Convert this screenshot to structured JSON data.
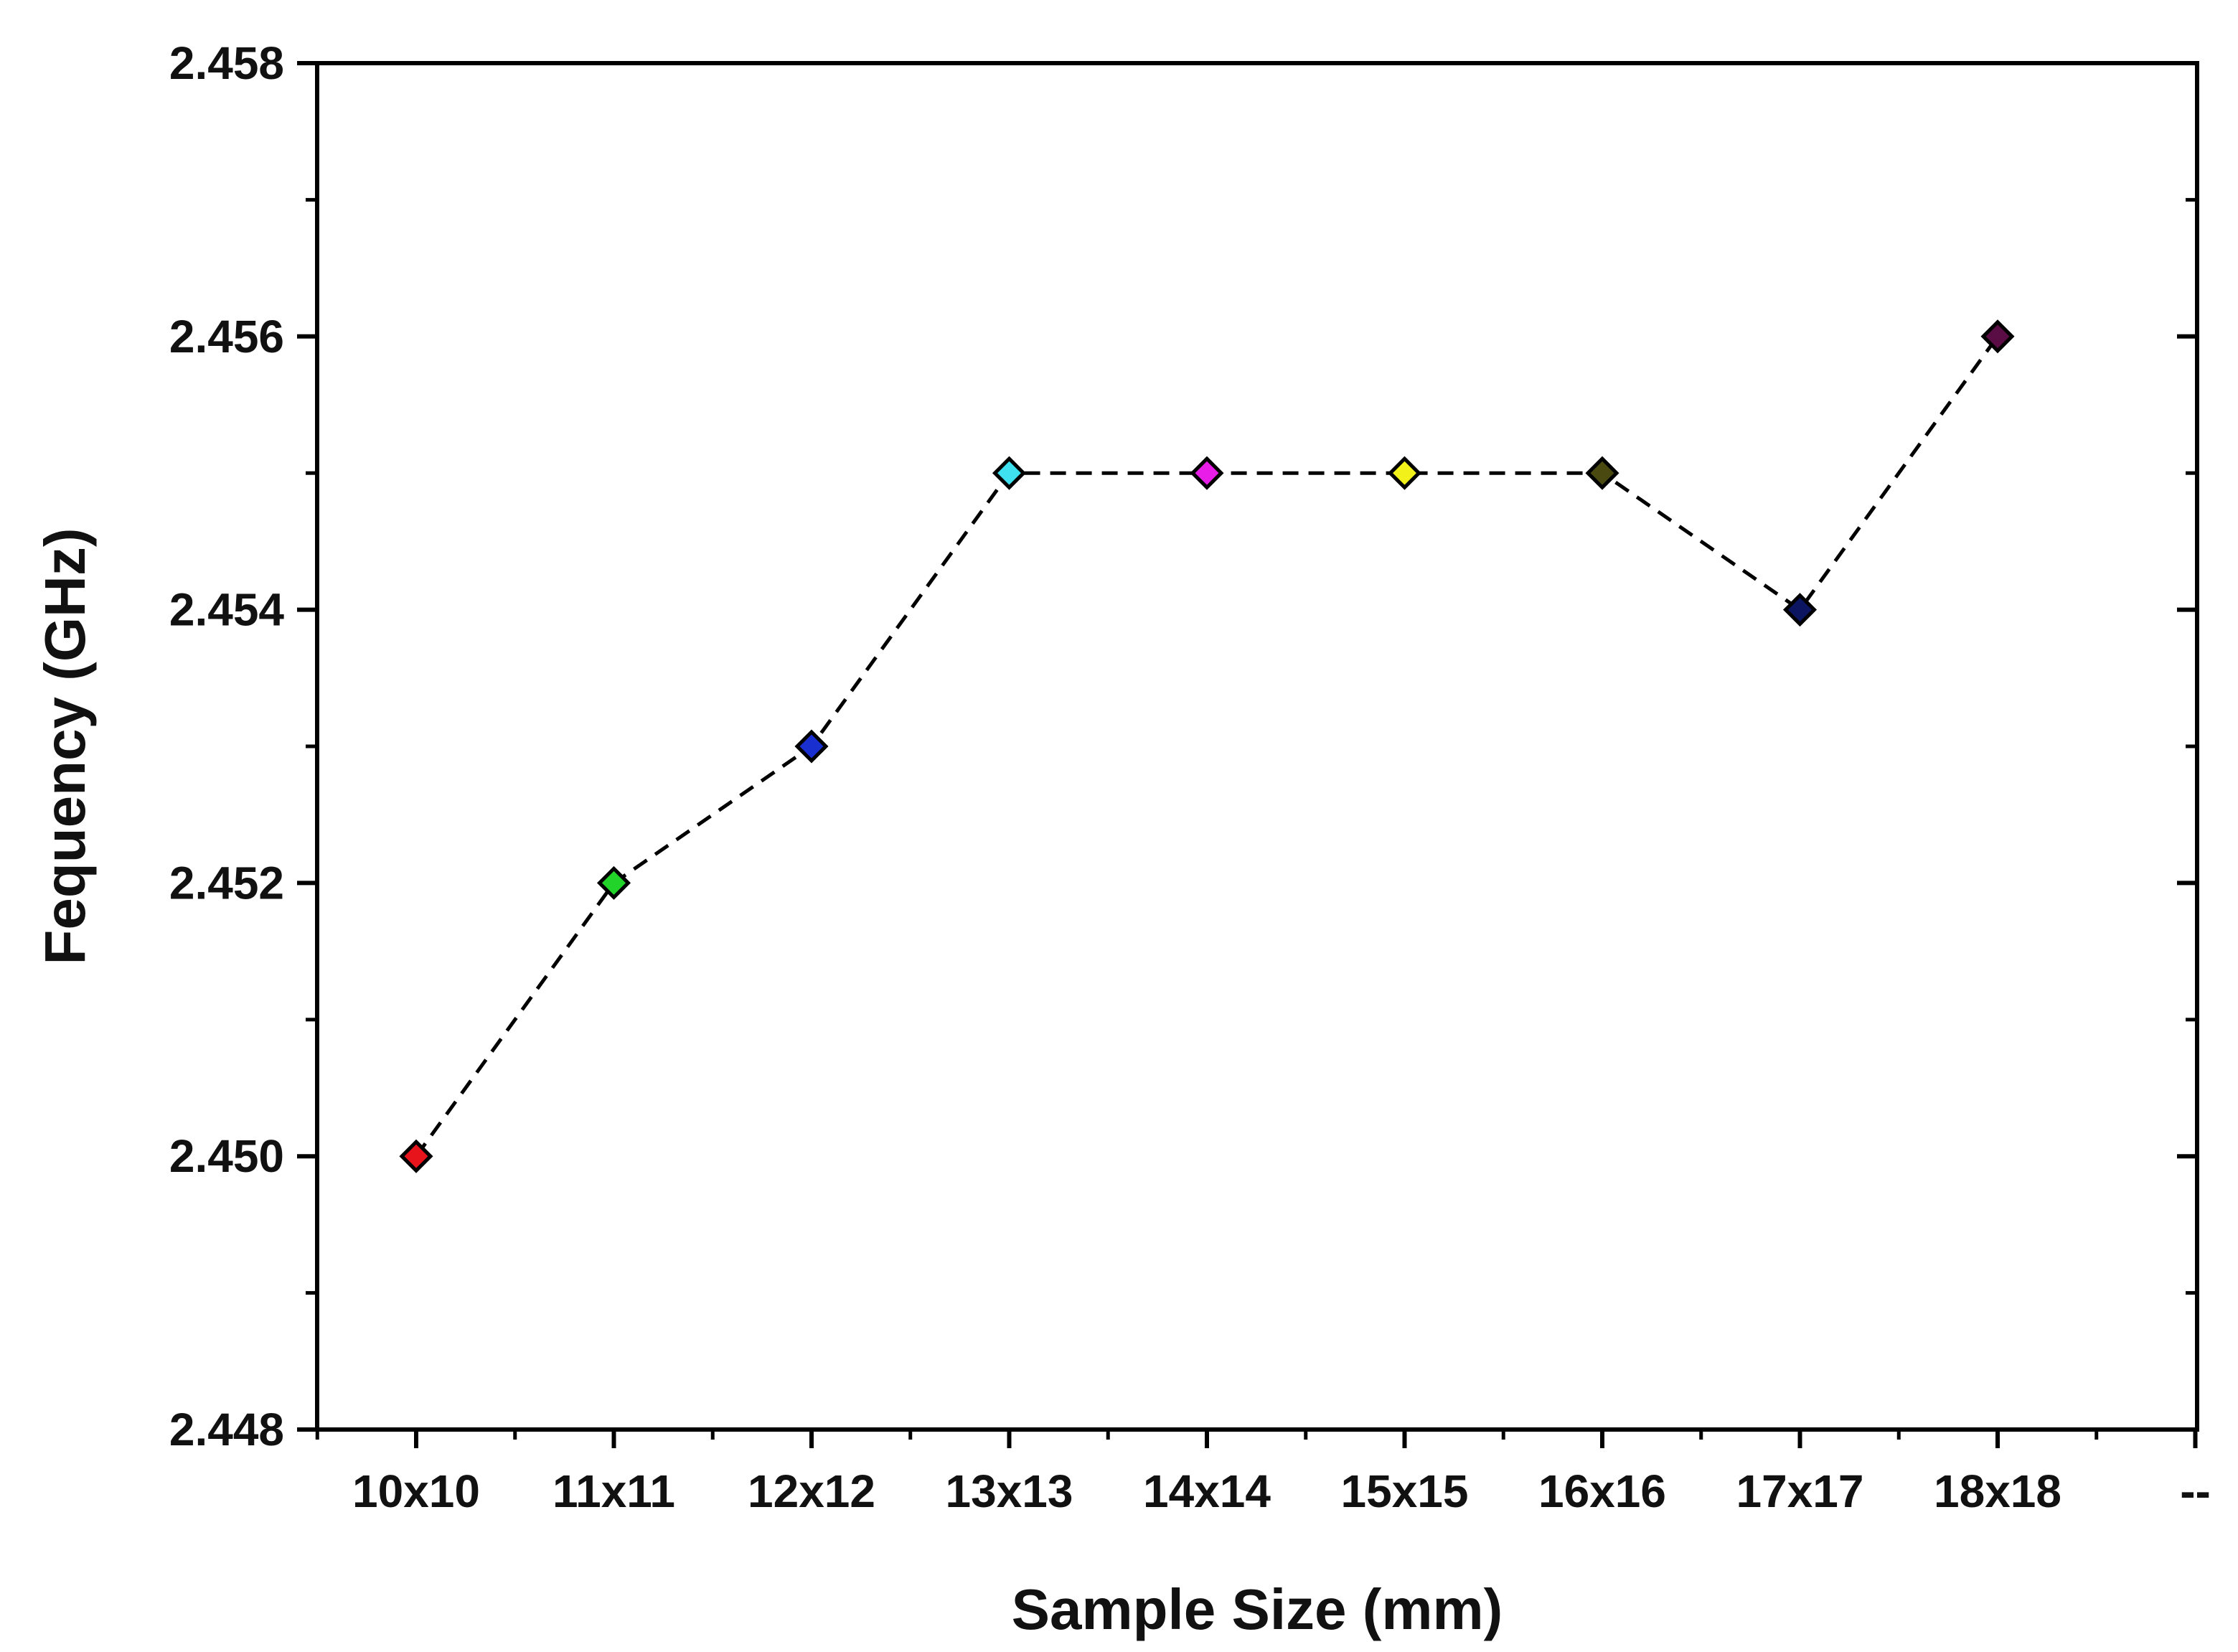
{
  "chart_data": {
    "type": "line",
    "title": "",
    "xlabel": "Sample Size (mm)",
    "ylabel": "Fequency (GHz)",
    "categories": [
      "10x10",
      "11x11",
      "12x12",
      "13x13",
      "14x14",
      "15x15",
      "16x16",
      "17x17",
      "18x18"
    ],
    "extra_x_tick_label": "--",
    "y_ticks": [
      "2.448",
      "2.450",
      "2.452",
      "2.454",
      "2.456",
      "2.458"
    ],
    "ylim": [
      2.448,
      2.458
    ],
    "grid": false,
    "legend": "none",
    "line_style": "dashed",
    "line_color": "#000000",
    "marker": "diamond",
    "series": [
      {
        "values": [
          2.45,
          2.452,
          2.453,
          2.455,
          2.455,
          2.455,
          2.455,
          2.454,
          2.456
        ],
        "marker_colors": [
          "#e8141c",
          "#22d42a",
          "#1a2fd0",
          "#3fe0f0",
          "#e81ee8",
          "#f2f21a",
          "#4a4a10",
          "#0c1660",
          "#5a0c44"
        ]
      }
    ]
  }
}
